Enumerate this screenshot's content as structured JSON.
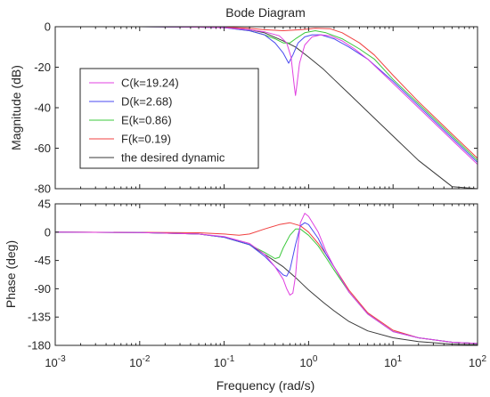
{
  "chart_data": {
    "type": "line",
    "title": "Bode Diagram",
    "xlabel": "Frequency  (rad/s)",
    "xscale": "log",
    "xlim": [
      0.001,
      100
    ],
    "x_ticks": [
      {
        "value": 0.001,
        "base": "10",
        "exp": "-3"
      },
      {
        "value": 0.01,
        "base": "10",
        "exp": "-2"
      },
      {
        "value": 0.1,
        "base": "10",
        "exp": "-1"
      },
      {
        "value": 1,
        "base": "10",
        "exp": "0"
      },
      {
        "value": 10,
        "base": "10",
        "exp": "1"
      },
      {
        "value": 100,
        "base": "10",
        "exp": "2"
      }
    ],
    "grid": false,
    "legend_position": "top-left of magnitude panel",
    "magnitude": {
      "ylabel": "Magnitude (dB)",
      "ylim": [
        -80,
        0
      ],
      "yticks": [
        {
          "value": 0,
          "label": "0"
        },
        {
          "value": -20,
          "label": "-20"
        },
        {
          "value": -40,
          "label": "-40"
        },
        {
          "value": -60,
          "label": "-60"
        },
        {
          "value": -80,
          "label": "-80"
        }
      ]
    },
    "phase": {
      "ylabel": "Phase (deg)",
      "ylim": [
        -180,
        45
      ],
      "yticks": [
        {
          "value": 45,
          "label": "45"
        },
        {
          "value": 0,
          "label": "0"
        },
        {
          "value": -45,
          "label": "-45"
        },
        {
          "value": -90,
          "label": "-90"
        },
        {
          "value": -135,
          "label": "-135"
        },
        {
          "value": -180,
          "label": "-180"
        }
      ]
    },
    "series": [
      {
        "name": "C(k=19.24)",
        "color": "#e040e0",
        "magnitude": [
          [
            0.001,
            0
          ],
          [
            0.01,
            0
          ],
          [
            0.05,
            -0.2
          ],
          [
            0.1,
            -0.5
          ],
          [
            0.2,
            -1.5
          ],
          [
            0.3,
            -2.5
          ],
          [
            0.45,
            -4.5
          ],
          [
            0.55,
            -8
          ],
          [
            0.62,
            -15
          ],
          [
            0.68,
            -30
          ],
          [
            0.7,
            -34
          ],
          [
            0.72,
            -30
          ],
          [
            0.78,
            -18
          ],
          [
            0.9,
            -9
          ],
          [
            1.1,
            -5
          ],
          [
            1.4,
            -4
          ],
          [
            1.8,
            -4.5
          ],
          [
            2.5,
            -7
          ],
          [
            3.5,
            -11
          ],
          [
            5,
            -16
          ],
          [
            10,
            -28
          ],
          [
            20,
            -40
          ],
          [
            50,
            -56
          ],
          [
            100,
            -68
          ]
        ],
        "phase": [
          [
            0.001,
            0
          ],
          [
            0.01,
            -0.5
          ],
          [
            0.05,
            -3
          ],
          [
            0.1,
            -7
          ],
          [
            0.2,
            -18
          ],
          [
            0.3,
            -35
          ],
          [
            0.4,
            -55
          ],
          [
            0.5,
            -75
          ],
          [
            0.55,
            -90
          ],
          [
            0.6,
            -100
          ],
          [
            0.65,
            -97
          ],
          [
            0.7,
            -70
          ],
          [
            0.75,
            -20
          ],
          [
            0.8,
            15
          ],
          [
            0.9,
            30
          ],
          [
            1,
            25
          ],
          [
            1.3,
            0
          ],
          [
            1.6,
            -30
          ],
          [
            2,
            -55
          ],
          [
            3,
            -95
          ],
          [
            5,
            -130
          ],
          [
            10,
            -158
          ],
          [
            20,
            -168
          ],
          [
            50,
            -175
          ],
          [
            100,
            -177
          ]
        ]
      },
      {
        "name": "D(k=2.68)",
        "color": "#4a4af0",
        "magnitude": [
          [
            0.001,
            0
          ],
          [
            0.01,
            0
          ],
          [
            0.05,
            -0.2
          ],
          [
            0.1,
            -0.5
          ],
          [
            0.2,
            -2
          ],
          [
            0.3,
            -4
          ],
          [
            0.4,
            -8
          ],
          [
            0.5,
            -13
          ],
          [
            0.58,
            -18
          ],
          [
            0.65,
            -14
          ],
          [
            0.75,
            -8
          ],
          [
            0.9,
            -5
          ],
          [
            1.1,
            -4
          ],
          [
            1.4,
            -4
          ],
          [
            2,
            -6
          ],
          [
            3,
            -10
          ],
          [
            5,
            -16
          ],
          [
            10,
            -27
          ],
          [
            20,
            -39
          ],
          [
            50,
            -55
          ],
          [
            100,
            -67
          ]
        ],
        "phase": [
          [
            0.001,
            0
          ],
          [
            0.01,
            -0.5
          ],
          [
            0.05,
            -3
          ],
          [
            0.1,
            -8
          ],
          [
            0.2,
            -20
          ],
          [
            0.3,
            -38
          ],
          [
            0.4,
            -55
          ],
          [
            0.5,
            -68
          ],
          [
            0.55,
            -70
          ],
          [
            0.6,
            -60
          ],
          [
            0.7,
            -20
          ],
          [
            0.8,
            10
          ],
          [
            0.9,
            15
          ],
          [
            1,
            12
          ],
          [
            1.3,
            -10
          ],
          [
            1.6,
            -35
          ],
          [
            2,
            -55
          ],
          [
            3,
            -95
          ],
          [
            5,
            -130
          ],
          [
            10,
            -158
          ],
          [
            20,
            -168
          ],
          [
            50,
            -175
          ],
          [
            100,
            -177
          ]
        ]
      },
      {
        "name": "E(k=0.86)",
        "color": "#3cc83c",
        "magnitude": [
          [
            0.001,
            0
          ],
          [
            0.01,
            0
          ],
          [
            0.05,
            -0.2
          ],
          [
            0.1,
            -0.5
          ],
          [
            0.2,
            -2
          ],
          [
            0.3,
            -4
          ],
          [
            0.4,
            -6
          ],
          [
            0.5,
            -8
          ],
          [
            0.6,
            -8
          ],
          [
            0.7,
            -6
          ],
          [
            0.9,
            -3
          ],
          [
            1.2,
            -2
          ],
          [
            1.6,
            -3
          ],
          [
            2.5,
            -6
          ],
          [
            4,
            -11
          ],
          [
            6,
            -16
          ],
          [
            10,
            -26
          ],
          [
            20,
            -38
          ],
          [
            50,
            -54
          ],
          [
            100,
            -66
          ]
        ],
        "phase": [
          [
            0.001,
            0
          ],
          [
            0.01,
            -0.5
          ],
          [
            0.05,
            -3
          ],
          [
            0.1,
            -8
          ],
          [
            0.2,
            -20
          ],
          [
            0.3,
            -32
          ],
          [
            0.4,
            -42
          ],
          [
            0.45,
            -40
          ],
          [
            0.5,
            -25
          ],
          [
            0.6,
            -5
          ],
          [
            0.7,
            5
          ],
          [
            0.8,
            5
          ],
          [
            1,
            -5
          ],
          [
            1.3,
            -22
          ],
          [
            1.6,
            -40
          ],
          [
            2,
            -60
          ],
          [
            3,
            -95
          ],
          [
            5,
            -130
          ],
          [
            10,
            -158
          ],
          [
            20,
            -168
          ],
          [
            50,
            -175
          ],
          [
            100,
            -177
          ]
        ]
      },
      {
        "name": "F(k=0.19)",
        "color": "#f04040",
        "magnitude": [
          [
            0.001,
            0
          ],
          [
            0.01,
            0
          ],
          [
            0.05,
            0
          ],
          [
            0.1,
            -0.2
          ],
          [
            0.2,
            -0.8
          ],
          [
            0.3,
            -1.5
          ],
          [
            0.5,
            -2
          ],
          [
            0.8,
            -1.5
          ],
          [
            1.2,
            -0.8
          ],
          [
            1.8,
            -1
          ],
          [
            2.5,
            -3
          ],
          [
            4,
            -8
          ],
          [
            6,
            -14
          ],
          [
            10,
            -24
          ],
          [
            20,
            -37
          ],
          [
            50,
            -53
          ],
          [
            100,
            -65
          ]
        ],
        "phase": [
          [
            0.001,
            0
          ],
          [
            0.01,
            -0.3
          ],
          [
            0.05,
            -1
          ],
          [
            0.1,
            -3
          ],
          [
            0.15,
            -5
          ],
          [
            0.2,
            -3
          ],
          [
            0.3,
            5
          ],
          [
            0.45,
            12
          ],
          [
            0.6,
            15
          ],
          [
            0.8,
            10
          ],
          [
            1,
            0
          ],
          [
            1.3,
            -18
          ],
          [
            1.6,
            -35
          ],
          [
            2,
            -55
          ],
          [
            3,
            -92
          ],
          [
            5,
            -128
          ],
          [
            10,
            -156
          ],
          [
            20,
            -168
          ],
          [
            50,
            -175
          ],
          [
            100,
            -177
          ]
        ]
      },
      {
        "name": "the desired dynamic",
        "color": "#3a3a3a",
        "magnitude": [
          [
            0.001,
            0
          ],
          [
            0.01,
            0
          ],
          [
            0.05,
            -0.1
          ],
          [
            0.1,
            -0.4
          ],
          [
            0.2,
            -1.5
          ],
          [
            0.3,
            -3
          ],
          [
            0.5,
            -7
          ],
          [
            0.7,
            -10
          ],
          [
            1,
            -15
          ],
          [
            1.5,
            -21
          ],
          [
            2,
            -26
          ],
          [
            3,
            -33
          ],
          [
            5,
            -42
          ],
          [
            10,
            -54
          ],
          [
            20,
            -66
          ],
          [
            50,
            -79
          ],
          [
            100,
            -90
          ]
        ],
        "phase": [
          [
            0.001,
            0
          ],
          [
            0.01,
            -0.5
          ],
          [
            0.05,
            -3
          ],
          [
            0.1,
            -8
          ],
          [
            0.2,
            -20
          ],
          [
            0.3,
            -35
          ],
          [
            0.5,
            -55
          ],
          [
            0.7,
            -72
          ],
          [
            1,
            -92
          ],
          [
            1.5,
            -112
          ],
          [
            2,
            -125
          ],
          [
            3,
            -142
          ],
          [
            5,
            -157
          ],
          [
            10,
            -168
          ],
          [
            20,
            -174
          ],
          [
            50,
            -178
          ],
          [
            100,
            -179
          ]
        ]
      }
    ]
  }
}
